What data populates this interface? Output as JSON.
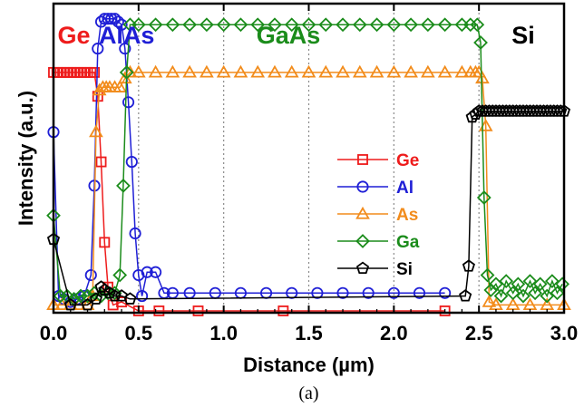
{
  "chart_data": {
    "type": "scatter",
    "xlabel": "Distance (µm)",
    "ylabel": "Intensity (a.u.)",
    "caption": "(a)",
    "xlim": [
      0,
      3.0
    ],
    "ylim": [
      0,
      1.0
    ],
    "xticks": [
      "0.0",
      "0.5",
      "1.0",
      "1.5",
      "2.0",
      "2.5",
      "3.0"
    ],
    "grid": "vertical dotted at 0.5 µm steps",
    "legend_position": "center-right",
    "region_labels": [
      {
        "text": "Ge",
        "color": "#ee1c1c",
        "x": 0.12
      },
      {
        "text": "AlAs",
        "color": "#1f1fd6",
        "x": 0.43
      },
      {
        "text": "GaAs",
        "color": "#1b8c1b",
        "x": 1.38
      },
      {
        "text": "Si",
        "color": "#000000",
        "x": 2.76
      }
    ],
    "series": [
      {
        "name": "Ge",
        "color": "#ee1c1c",
        "marker": "square",
        "x": [
          0.0,
          0.02,
          0.04,
          0.06,
          0.08,
          0.1,
          0.12,
          0.14,
          0.16,
          0.18,
          0.2,
          0.22,
          0.24,
          0.26,
          0.28,
          0.3,
          0.32,
          0.35,
          0.4,
          0.5,
          0.62,
          0.85,
          1.35,
          2.3
        ],
        "y": [
          0.8,
          0.8,
          0.8,
          0.8,
          0.8,
          0.8,
          0.8,
          0.8,
          0.8,
          0.8,
          0.8,
          0.8,
          0.8,
          0.72,
          0.5,
          0.23,
          0.08,
          0.02,
          0.03,
          0.0,
          0.0,
          0.0,
          0.0,
          0.0
        ]
      },
      {
        "name": "Al",
        "color": "#1f1fd6",
        "marker": "circle",
        "x": [
          0.0,
          0.03,
          0.06,
          0.1,
          0.14,
          0.18,
          0.22,
          0.24,
          0.26,
          0.28,
          0.3,
          0.32,
          0.34,
          0.36,
          0.38,
          0.4,
          0.42,
          0.44,
          0.46,
          0.48,
          0.5,
          0.52,
          0.55,
          0.6,
          0.65,
          0.7,
          0.8,
          0.95,
          1.1,
          1.25,
          1.4,
          1.55,
          1.7,
          1.85,
          2.0,
          2.15,
          2.3
        ],
        "y": [
          0.6,
          0.05,
          0.04,
          0.03,
          0.04,
          0.05,
          0.12,
          0.42,
          0.88,
          0.97,
          0.98,
          0.98,
          0.98,
          0.98,
          0.97,
          0.96,
          0.88,
          0.7,
          0.5,
          0.26,
          0.12,
          0.05,
          0.13,
          0.13,
          0.06,
          0.06,
          0.06,
          0.06,
          0.06,
          0.06,
          0.06,
          0.06,
          0.06,
          0.06,
          0.06,
          0.06,
          0.06
        ]
      },
      {
        "name": "As",
        "color": "#f28c1c",
        "marker": "triangle",
        "x": [
          0.0,
          0.05,
          0.1,
          0.15,
          0.2,
          0.23,
          0.25,
          0.27,
          0.29,
          0.31,
          0.33,
          0.36,
          0.39,
          0.42,
          0.45,
          0.5,
          0.6,
          0.7,
          0.8,
          0.9,
          1.0,
          1.1,
          1.2,
          1.3,
          1.4,
          1.5,
          1.6,
          1.7,
          1.8,
          1.9,
          2.0,
          2.1,
          2.2,
          2.3,
          2.4,
          2.45,
          2.48,
          2.5,
          2.52,
          2.54,
          2.56,
          2.6,
          2.7,
          2.8,
          2.9,
          3.0
        ],
        "y": [
          0.02,
          0.02,
          0.02,
          0.02,
          0.02,
          0.05,
          0.6,
          0.74,
          0.75,
          0.75,
          0.75,
          0.75,
          0.75,
          0.78,
          0.8,
          0.8,
          0.8,
          0.8,
          0.8,
          0.8,
          0.8,
          0.8,
          0.8,
          0.8,
          0.8,
          0.8,
          0.8,
          0.8,
          0.8,
          0.8,
          0.8,
          0.8,
          0.8,
          0.8,
          0.8,
          0.8,
          0.8,
          0.8,
          0.78,
          0.62,
          0.03,
          0.02,
          0.02,
          0.02,
          0.02,
          0.02
        ]
      },
      {
        "name": "Ga",
        "color": "#1b8c1b",
        "marker": "diamond",
        "x": [
          0.0,
          0.04,
          0.08,
          0.12,
          0.16,
          0.2,
          0.24,
          0.28,
          0.32,
          0.36,
          0.39,
          0.41,
          0.43,
          0.45,
          0.5,
          0.6,
          0.7,
          0.8,
          0.9,
          1.0,
          1.1,
          1.2,
          1.3,
          1.4,
          1.5,
          1.6,
          1.7,
          1.8,
          1.9,
          2.0,
          2.1,
          2.2,
          2.3,
          2.4,
          2.45,
          2.49,
          2.51,
          2.53,
          2.55,
          2.57,
          2.6,
          2.63,
          2.66,
          2.7,
          2.73,
          2.76,
          2.8,
          2.83,
          2.86,
          2.9,
          2.93,
          2.96,
          2.99
        ],
        "y": [
          0.32,
          0.05,
          0.05,
          0.04,
          0.05,
          0.05,
          0.06,
          0.05,
          0.06,
          0.06,
          0.12,
          0.42,
          0.8,
          0.96,
          0.96,
          0.96,
          0.96,
          0.96,
          0.96,
          0.96,
          0.96,
          0.96,
          0.96,
          0.96,
          0.96,
          0.96,
          0.96,
          0.96,
          0.96,
          0.96,
          0.96,
          0.96,
          0.96,
          0.96,
          0.96,
          0.96,
          0.9,
          0.38,
          0.12,
          0.07,
          0.09,
          0.05,
          0.1,
          0.06,
          0.09,
          0.05,
          0.1,
          0.06,
          0.09,
          0.05,
          0.1,
          0.06,
          0.09
        ]
      },
      {
        "name": "Si",
        "color": "#000000",
        "marker": "pentagon",
        "x": [
          0.0,
          0.1,
          0.2,
          0.25,
          0.28,
          0.3,
          0.33,
          0.36,
          0.4,
          0.45,
          2.42,
          2.44,
          2.46,
          2.48,
          2.5,
          2.52,
          2.54,
          2.56,
          2.58,
          2.6,
          2.62,
          2.64,
          2.66,
          2.68,
          2.7,
          2.72,
          2.74,
          2.76,
          2.78,
          2.8,
          2.82,
          2.84,
          2.86,
          2.88,
          2.9,
          2.92,
          2.94,
          2.96,
          2.98,
          3.0
        ],
        "y": [
          0.24,
          0.02,
          0.02,
          0.04,
          0.08,
          0.07,
          0.06,
          0.05,
          0.05,
          0.04,
          0.05,
          0.15,
          0.65,
          0.66,
          0.67,
          0.67,
          0.67,
          0.67,
          0.67,
          0.67,
          0.67,
          0.67,
          0.67,
          0.67,
          0.67,
          0.67,
          0.67,
          0.67,
          0.67,
          0.67,
          0.67,
          0.67,
          0.67,
          0.67,
          0.67,
          0.67,
          0.67,
          0.67,
          0.67,
          0.67
        ]
      }
    ]
  }
}
